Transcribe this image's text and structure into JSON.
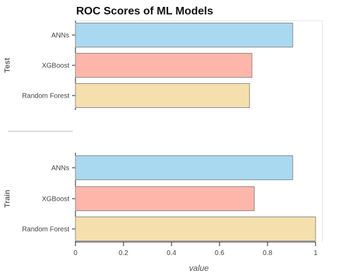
{
  "chart_data": {
    "type": "bar",
    "orientation": "horizontal",
    "title": "ROC Scores of ML Models",
    "xlabel": "value",
    "xlim": [
      0,
      1
    ],
    "xticks": [
      "0",
      "0.2",
      "0.4",
      "0.6",
      "0.8",
      "1"
    ],
    "groups": [
      {
        "name": "Test",
        "categories": [
          "ANNs",
          "XGBoost",
          "Random Forest"
        ],
        "values": [
          0.905,
          0.735,
          0.725
        ]
      },
      {
        "name": "Train",
        "categories": [
          "ANNs",
          "XGBoost",
          "Random Forest"
        ],
        "values": [
          0.905,
          0.745,
          1.0
        ]
      }
    ],
    "colors": {
      "ANNs": "#a9d9f0",
      "XGBoost": "#ffb6aa",
      "Random Forest": "#f5dfac"
    },
    "grid": false
  }
}
